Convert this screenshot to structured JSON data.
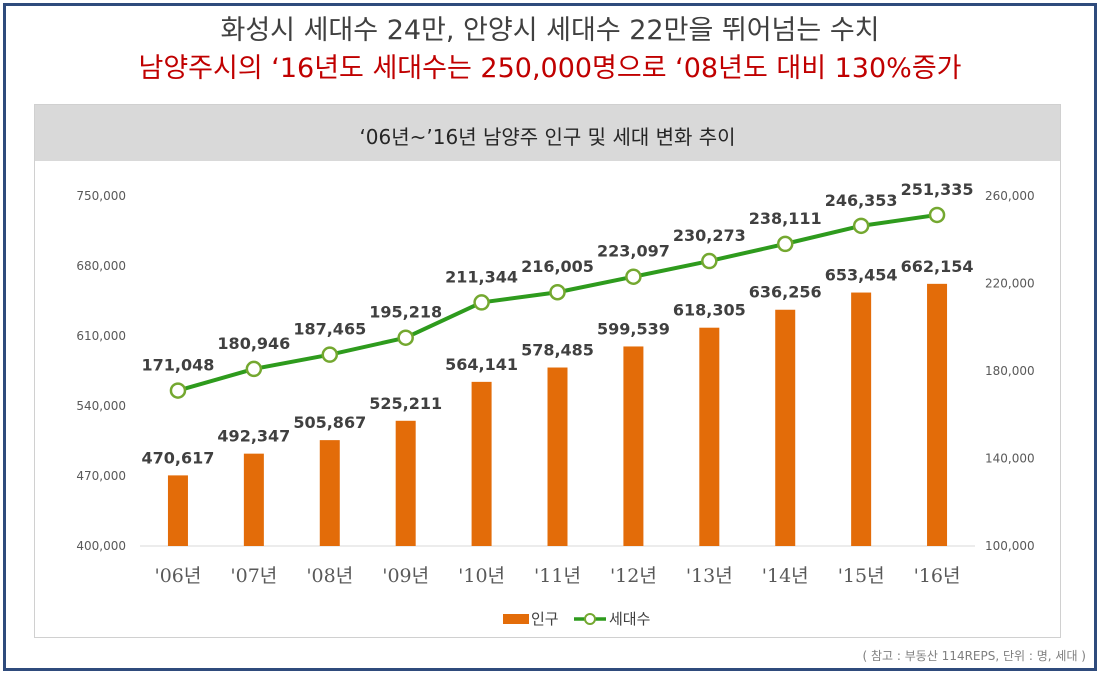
{
  "headline": {
    "line1": "화성시 세대수 24만, 안양시 세대수 22만을 뛰어넘는 수치",
    "line2": "남양주시의 ‘16년도 세대수는 250,000명으로 ‘08년도 대비 130%증가"
  },
  "colors": {
    "bar": "#e36c09",
    "line": "#2e9b1d",
    "headline_red": "#c00000"
  },
  "source_note": "( 참고 : 부동산 114REPS,  단위 : 명, 세대 )",
  "chart_data": {
    "type": "bar",
    "title": "‘06년~’16년 남양주 인구 및 세대 변화 추이",
    "categories": [
      "'06년",
      "'07년",
      "'08년",
      "'09년",
      "'10년",
      "'11년",
      "'12년",
      "'13년",
      "'14년",
      "'15년",
      "'16년"
    ],
    "series": [
      {
        "name": "인구",
        "type": "bar",
        "axis": "left",
        "values": [
          470617,
          492347,
          505867,
          525211,
          564141,
          578485,
          599539,
          618305,
          636256,
          653454,
          662154
        ],
        "labels": [
          "470,617",
          "492,347",
          "505,867",
          "525,211",
          "564,141",
          "578,485",
          "599,539",
          "618,305",
          "636,256",
          "653,454",
          "662,154"
        ]
      },
      {
        "name": "세대수",
        "type": "line",
        "axis": "right",
        "values": [
          171048,
          180946,
          187465,
          195218,
          211344,
          216005,
          223097,
          230273,
          238111,
          246353,
          251335
        ],
        "labels": [
          "171,048",
          "180,946",
          "187,465",
          "195,218",
          "211,344",
          "216,005",
          "223,097",
          "230,273",
          "238,111",
          "246,353",
          "251,335"
        ]
      }
    ],
    "y_left": {
      "min": 400000,
      "max": 750000,
      "ticks": [
        400000,
        470000,
        540000,
        610000,
        680000,
        750000
      ],
      "tick_labels": [
        "400,000",
        "470,000",
        "540,000",
        "610,000",
        "680,000",
        "750,000"
      ]
    },
    "y_right": {
      "min": 100000,
      "max": 260000,
      "ticks": [
        100000,
        140000,
        180000,
        220000,
        260000
      ],
      "tick_labels": [
        "100,000",
        "140,000",
        "180,000",
        "220,000",
        "260,000"
      ]
    },
    "grid": false,
    "legend": "bottom"
  }
}
